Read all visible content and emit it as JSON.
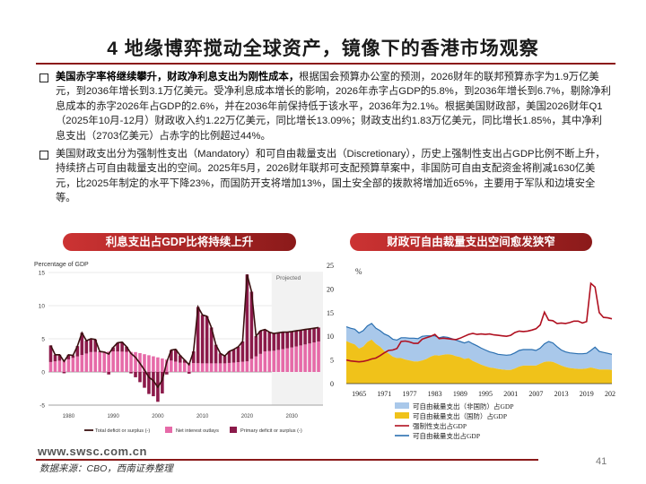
{
  "slide": {
    "title": "4 地缘博弈搅动全球资产，镜像下的香港市场观察",
    "bullets": [
      {
        "bold": "美国赤字率将继续攀升，财政净利息支出为刚性成本，",
        "text": "根据国会预算办公室的预测，2026财年的联邦预算赤字为1.9万亿美元，到2036年增长到3.1万亿美元。受净利息成本增长的影响，2026年赤字占GDP的5.8%，到2036年增长到6.7%，剔除净利息成本的赤字2026年占GDP的2.6%，并在2036年前保持低于该水平，2036年为2.1%。根据美国财政部，美国2026财年Q1（2025年10月-12月）财政收入约1.22万亿美元，同比增长13.09%；财政支出约1.83万亿美元，同比增长1.85%，其中净利息支出（2703亿美元）占赤字的比例超过44%。"
      },
      {
        "bold": "",
        "text": "美国财政支出分为强制性支出（Mandatory）和可自由裁量支出（Discretionary），历史上强制性支出占GDP比例不断上升，持续挤占可自由裁量支出的空间。2025年5月，2026财年联邦可支配预算草案中，非国防可自由支配资金将削减1630亿美元，比2025年制定的水平下降23%，而国防开支将增加13%，国土安全部的拨款将增加近65%，主要用于军队和边境安全等。"
      }
    ],
    "footer": {
      "url": "www.swsc.com.cn",
      "source": "数据来源：CBO，西南证券整理",
      "page": "41"
    }
  },
  "colors": {
    "brand": "#8b1a1a",
    "deficit_line": "#3a1010",
    "net_interest": "#e66aa8",
    "primary_deficit": "#8b1a4a",
    "nondefense": "#a9c8ea",
    "defense": "#f0c21a",
    "mandatory": "#b01020",
    "discretionary": "#2a6fb0"
  },
  "chart_data": [
    {
      "type": "bar",
      "title": "利息支出占GDP比将持续上升",
      "ylabel": "Percentage of GDP",
      "annotation": "Projected",
      "ylim": [
        -5,
        15
      ],
      "yticks": [
        "15",
        "10",
        "5",
        "0",
        "-5"
      ],
      "xticks": [
        "1980",
        "1990",
        "2000",
        "2010",
        "2020",
        "2030"
      ],
      "legend": [
        "Total deficit or surplus (-)",
        "Net interest outlays",
        "Primary deficit or surplus (-)"
      ],
      "projection_start": 2026,
      "series": [
        {
          "name": "Total deficit or surplus (-)",
          "x": [
            1976,
            1977,
            1978,
            1979,
            1980,
            1981,
            1982,
            1983,
            1984,
            1985,
            1986,
            1987,
            1988,
            1989,
            1990,
            1991,
            1992,
            1993,
            1994,
            1995,
            1996,
            1997,
            1998,
            1999,
            2000,
            2001,
            2002,
            2003,
            2004,
            2005,
            2006,
            2007,
            2008,
            2009,
            2010,
            2011,
            2012,
            2013,
            2014,
            2015,
            2016,
            2017,
            2018,
            2019,
            2020,
            2021,
            2022,
            2023,
            2024,
            2025,
            2026,
            2027,
            2028,
            2029,
            2030,
            2031,
            2032,
            2033,
            2034,
            2035,
            2036
          ],
          "values": [
            4.0,
            2.6,
            2.6,
            1.6,
            2.6,
            2.5,
            3.9,
            5.9,
            4.7,
            5.0,
            4.9,
            3.1,
            3.0,
            2.7,
            3.7,
            4.4,
            4.5,
            3.8,
            2.8,
            2.2,
            1.3,
            0.3,
            -0.8,
            -1.3,
            -2.3,
            -1.2,
            1.5,
            3.3,
            3.4,
            2.5,
            1.8,
            1.1,
            3.1,
            9.8,
            8.6,
            8.4,
            6.7,
            4.1,
            2.8,
            2.4,
            3.1,
            3.4,
            3.8,
            4.6,
            14.7,
            12.1,
            5.4,
            6.2,
            6.4,
            6.0,
            5.8,
            5.9,
            6.0,
            6.0,
            6.1,
            6.2,
            6.3,
            6.4,
            6.5,
            6.6,
            6.7
          ]
        },
        {
          "name": "Net interest outlays",
          "x": [
            1976,
            1980,
            1985,
            1990,
            1995,
            2000,
            2005,
            2010,
            2015,
            2020,
            2024,
            2026,
            2030,
            2036
          ],
          "values": [
            1.5,
            1.9,
            3.0,
            3.1,
            3.0,
            2.2,
            1.4,
            1.3,
            1.3,
            1.6,
            3.1,
            3.2,
            3.7,
            4.6
          ]
        }
      ]
    },
    {
      "type": "area",
      "title": "财政可自由裁量支出空间愈发狭窄",
      "ylabel": "%",
      "ylim": [
        0,
        25
      ],
      "yticks": [
        "25",
        "20",
        "15",
        "10",
        "5",
        "0"
      ],
      "xticks": [
        "1965",
        "1971",
        "1977",
        "1983",
        "1989",
        "1995",
        "2001",
        "2007",
        "2013",
        "2019",
        "2025"
      ],
      "legend": [
        "可自由裁量支出（非国防）占GDP",
        "可自由裁量支出（国防）占GDP",
        "强制性支出占GDP",
        "可自由裁量支出占GDP"
      ],
      "x": [
        1962,
        1963,
        1964,
        1965,
        1966,
        1967,
        1968,
        1969,
        1970,
        1971,
        1972,
        1973,
        1974,
        1975,
        1976,
        1977,
        1978,
        1979,
        1980,
        1981,
        1982,
        1983,
        1984,
        1985,
        1986,
        1987,
        1988,
        1989,
        1990,
        1991,
        1992,
        1993,
        1994,
        1995,
        1996,
        1997,
        1998,
        1999,
        2000,
        2001,
        2002,
        2003,
        2004,
        2005,
        2006,
        2007,
        2008,
        2009,
        2010,
        2011,
        2012,
        2013,
        2014,
        2015,
        2016,
        2017,
        2018,
        2019,
        2020,
        2021,
        2022,
        2023,
        2024,
        2025
      ],
      "series": [
        {
          "name": "可自由裁量支出（国防）占GDP",
          "values": [
            9.0,
            8.6,
            8.3,
            7.4,
            7.8,
            8.8,
            9.3,
            8.4,
            7.8,
            6.9,
            6.4,
            5.7,
            5.4,
            5.4,
            5.1,
            4.9,
            4.7,
            4.7,
            4.9,
            5.2,
            5.7,
            6.0,
            5.9,
            6.1,
            6.2,
            6.1,
            5.8,
            5.6,
            5.2,
            5.4,
            4.8,
            4.4,
            4.0,
            3.7,
            3.4,
            3.3,
            3.1,
            3.0,
            2.9,
            2.9,
            3.2,
            3.6,
            3.8,
            3.8,
            3.8,
            3.8,
            4.2,
            4.6,
            4.7,
            4.6,
            4.2,
            3.8,
            3.5,
            3.3,
            3.2,
            3.1,
            3.1,
            3.2,
            3.4,
            3.2,
            3.0,
            3.0,
            3.0,
            2.9
          ]
        },
        {
          "name": "可自由裁量支出（非国防）占GDP",
          "values": [
            3.0,
            3.1,
            3.2,
            3.3,
            3.4,
            3.4,
            3.4,
            3.3,
            3.4,
            3.6,
            3.7,
            3.7,
            3.8,
            4.3,
            4.6,
            4.7,
            4.9,
            4.8,
            5.1,
            4.9,
            4.4,
            4.1,
            3.8,
            3.8,
            3.6,
            3.4,
            3.4,
            3.3,
            3.4,
            3.5,
            3.6,
            3.6,
            3.5,
            3.4,
            3.3,
            3.2,
            3.1,
            3.1,
            3.1,
            3.2,
            3.3,
            3.4,
            3.4,
            3.4,
            3.4,
            3.2,
            3.3,
            3.8,
            4.2,
            4.0,
            3.6,
            3.3,
            3.2,
            3.2,
            3.2,
            3.2,
            3.2,
            3.2,
            3.6,
            4.5,
            3.8,
            3.6,
            3.4,
            3.3
          ]
        },
        {
          "name": "强制性支出占GDP",
          "values": [
            5.0,
            4.8,
            4.7,
            4.6,
            4.7,
            4.9,
            5.2,
            5.4,
            5.9,
            6.5,
            7.0,
            7.1,
            7.4,
            8.9,
            9.0,
            8.8,
            8.5,
            8.5,
            9.4,
            9.7,
            10.0,
            10.4,
            9.5,
            9.6,
            9.5,
            9.4,
            9.3,
            9.6,
            10.0,
            10.4,
            10.6,
            10.4,
            10.5,
            10.4,
            10.5,
            10.3,
            10.2,
            10.1,
            10.0,
            10.2,
            10.8,
            11.1,
            11.0,
            11.1,
            11.3,
            11.6,
            12.4,
            15.1,
            13.4,
            13.3,
            12.7,
            12.8,
            12.7,
            12.9,
            13.2,
            13.2,
            12.8,
            13.1,
            21.2,
            20.4,
            15.0,
            14.0,
            13.9,
            13.7
          ]
        },
        {
          "name": "可自由裁量支出占GDP",
          "values": [
            12.0,
            11.7,
            11.5,
            10.7,
            11.2,
            12.2,
            12.7,
            11.7,
            11.2,
            10.5,
            10.1,
            9.4,
            9.2,
            9.7,
            9.7,
            9.6,
            9.6,
            9.5,
            10.0,
            10.1,
            10.1,
            10.1,
            9.7,
            9.9,
            9.8,
            9.5,
            9.2,
            8.9,
            8.6,
            8.9,
            8.4,
            8.0,
            7.5,
            7.1,
            6.7,
            6.5,
            6.2,
            6.1,
            6.0,
            6.1,
            6.5,
            7.0,
            7.2,
            7.2,
            7.2,
            7.0,
            7.5,
            8.4,
            8.9,
            8.6,
            7.8,
            7.1,
            6.7,
            6.5,
            6.4,
            6.3,
            6.3,
            6.4,
            7.0,
            7.7,
            6.8,
            6.6,
            6.4,
            6.2
          ]
        }
      ]
    }
  ]
}
